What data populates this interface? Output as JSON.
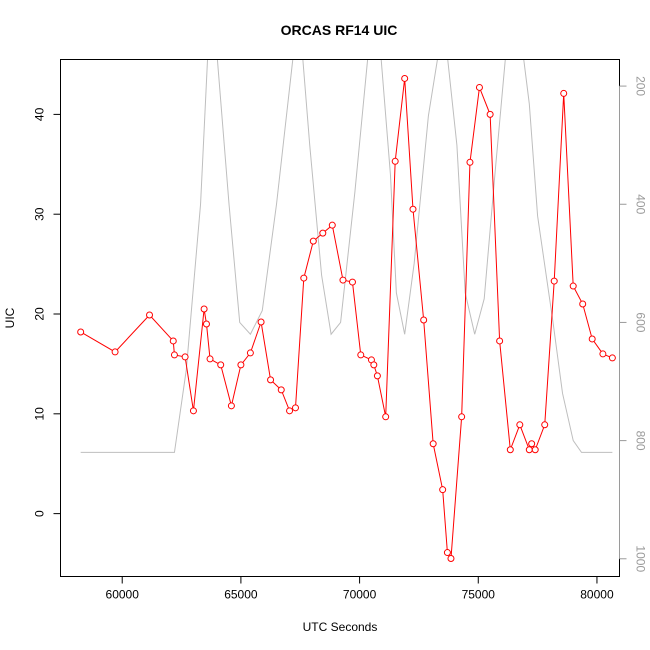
{
  "chart_data": {
    "type": "line",
    "title": "ORCAS RF14 UIC",
    "xlabel": "UTC Seconds",
    "ylabel": "UIC",
    "xlim": [
      57400,
      80950
    ],
    "ylim": [
      -6.3,
      45.5
    ],
    "xticks": [
      60000,
      65000,
      70000,
      75000,
      80000
    ],
    "yticks": [
      0,
      10,
      20,
      30,
      40
    ],
    "y2lim": [
      1030,
      155
    ],
    "y2ticks": [
      200,
      400,
      600,
      800,
      1000
    ],
    "grid": false,
    "legend": "none",
    "series": [
      {
        "color": "#ff0000",
        "marker": "open-circle",
        "axis": "left",
        "x": [
          58250,
          59700,
          61150,
          62150,
          62200,
          62650,
          63000,
          63450,
          63550,
          63700,
          64150,
          64600,
          65000,
          65400,
          65850,
          66250,
          66700,
          67050,
          67300,
          67650,
          68050,
          68450,
          68850,
          69300,
          69700,
          70050,
          70500,
          70600,
          70750,
          71100,
          71500,
          71900,
          72250,
          72700,
          73100,
          73500,
          73700,
          73850,
          74300,
          74650,
          75050,
          75500,
          75900,
          76350,
          76750,
          77150,
          77250,
          77400,
          77800,
          78200,
          78600,
          79000,
          79400,
          79800,
          80250,
          80650
        ],
        "y": [
          18.2,
          16.2,
          19.9,
          17.3,
          15.9,
          15.7,
          10.3,
          20.5,
          19.0,
          15.5,
          14.9,
          10.8,
          14.9,
          16.1,
          19.2,
          13.4,
          12.4,
          10.3,
          10.6,
          23.6,
          27.3,
          28.1,
          28.9,
          23.4,
          23.2,
          15.9,
          15.4,
          14.9,
          13.8,
          9.7,
          35.3,
          43.6,
          30.5,
          19.4,
          7.0,
          2.4,
          -3.9,
          -4.5,
          9.7,
          35.2,
          42.7,
          40.0,
          17.3,
          6.4,
          8.9,
          6.4,
          7.0,
          6.4,
          8.9,
          23.3,
          42.1,
          22.8,
          21.0,
          17.5,
          16.0,
          15.6
        ]
      },
      {
        "color": "#bebebe",
        "marker": "none",
        "axis": "right",
        "x": [
          58250,
          60200,
          62200,
          62700,
          63300,
          63600,
          64000,
          64500,
          64950,
          65400,
          65900,
          66500,
          67200,
          67600,
          67900,
          68400,
          68800,
          69200,
          69800,
          70350,
          70900,
          71300,
          71550,
          71900,
          72300,
          72900,
          73300,
          73700,
          74100,
          74450,
          74850,
          75250,
          75700,
          76150,
          76900,
          77150,
          77500,
          78150,
          78550,
          79000,
          79350,
          80650
        ],
        "y": [
          820,
          820,
          820,
          680,
          400,
          150,
          150,
          400,
          600,
          620,
          580,
          400,
          150,
          150,
          300,
          520,
          620,
          600,
          380,
          150,
          150,
          350,
          550,
          620,
          500,
          250,
          150,
          150,
          300,
          550,
          620,
          560,
          350,
          150,
          150,
          230,
          420,
          600,
          720,
          800,
          820,
          820
        ]
      }
    ]
  }
}
